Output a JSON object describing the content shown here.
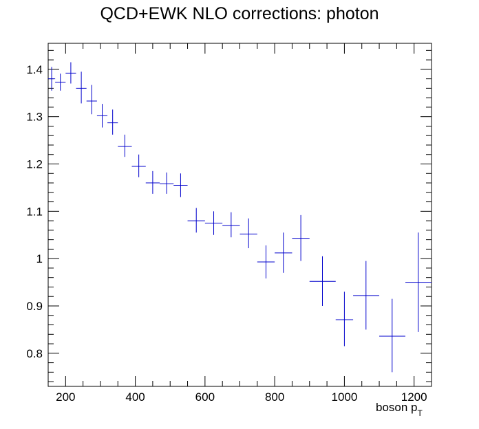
{
  "chart_data": {
    "type": "scatter",
    "title": "QCD+EWK NLO corrections: photon",
    "xlabel": "boson p",
    "xlabel_subscript": "T",
    "ylabel": "",
    "xlim": [
      150,
      1250
    ],
    "ylim": [
      0.73,
      1.455
    ],
    "xticks": [
      200,
      400,
      600,
      800,
      1000,
      1200
    ],
    "yticks": [
      0.8,
      0.9,
      1.0,
      1.1,
      1.2,
      1.3,
      1.4
    ],
    "ytick_labels": [
      "0.8",
      "0.9",
      "1",
      "1.1",
      "1.2",
      "1.3",
      "1.4"
    ],
    "grid": false,
    "series": [
      {
        "color": "#0000cc",
        "points": [
          {
            "x": 160,
            "xlo": 150,
            "xhi": 170,
            "y": 1.38,
            "ylo": 1.355,
            "yhi": 1.405
          },
          {
            "x": 185,
            "xlo": 170,
            "xhi": 200,
            "y": 1.373,
            "ylo": 1.355,
            "yhi": 1.391
          },
          {
            "x": 215,
            "xlo": 200,
            "xhi": 230,
            "y": 1.392,
            "ylo": 1.37,
            "yhi": 1.415
          },
          {
            "x": 245,
            "xlo": 230,
            "xhi": 260,
            "y": 1.36,
            "ylo": 1.328,
            "yhi": 1.395
          },
          {
            "x": 275,
            "xlo": 260,
            "xhi": 290,
            "y": 1.333,
            "ylo": 1.305,
            "yhi": 1.367
          },
          {
            "x": 305,
            "xlo": 290,
            "xhi": 320,
            "y": 1.302,
            "ylo": 1.277,
            "yhi": 1.327
          },
          {
            "x": 335,
            "xlo": 320,
            "xhi": 350,
            "y": 1.287,
            "ylo": 1.262,
            "yhi": 1.315
          },
          {
            "x": 370,
            "xlo": 350,
            "xhi": 390,
            "y": 1.237,
            "ylo": 1.215,
            "yhi": 1.262
          },
          {
            "x": 410,
            "xlo": 390,
            "xhi": 430,
            "y": 1.195,
            "ylo": 1.172,
            "yhi": 1.22
          },
          {
            "x": 450,
            "xlo": 430,
            "xhi": 470,
            "y": 1.16,
            "ylo": 1.137,
            "yhi": 1.185
          },
          {
            "x": 490,
            "xlo": 470,
            "xhi": 510,
            "y": 1.158,
            "ylo": 1.137,
            "yhi": 1.182
          },
          {
            "x": 530,
            "xlo": 510,
            "xhi": 550,
            "y": 1.155,
            "ylo": 1.13,
            "yhi": 1.18
          },
          {
            "x": 575,
            "xlo": 550,
            "xhi": 600,
            "y": 1.08,
            "ylo": 1.055,
            "yhi": 1.107
          },
          {
            "x": 625,
            "xlo": 600,
            "xhi": 650,
            "y": 1.075,
            "ylo": 1.05,
            "yhi": 1.1
          },
          {
            "x": 675,
            "xlo": 650,
            "xhi": 700,
            "y": 1.07,
            "ylo": 1.045,
            "yhi": 1.098
          },
          {
            "x": 725,
            "xlo": 700,
            "xhi": 750,
            "y": 1.052,
            "ylo": 1.022,
            "yhi": 1.085
          },
          {
            "x": 775,
            "xlo": 750,
            "xhi": 800,
            "y": 0.993,
            "ylo": 0.958,
            "yhi": 1.028
          },
          {
            "x": 825,
            "xlo": 800,
            "xhi": 850,
            "y": 1.012,
            "ylo": 0.97,
            "yhi": 1.055
          },
          {
            "x": 875,
            "xlo": 850,
            "xhi": 900,
            "y": 1.043,
            "ylo": 0.995,
            "yhi": 1.092
          },
          {
            "x": 937,
            "xlo": 900,
            "xhi": 975,
            "y": 0.952,
            "ylo": 0.9,
            "yhi": 1.005
          },
          {
            "x": 1000,
            "xlo": 975,
            "xhi": 1025,
            "y": 0.871,
            "ylo": 0.815,
            "yhi": 0.93
          },
          {
            "x": 1062,
            "xlo": 1025,
            "xhi": 1100,
            "y": 0.922,
            "ylo": 0.85,
            "yhi": 0.995
          },
          {
            "x": 1137,
            "xlo": 1100,
            "xhi": 1175,
            "y": 0.836,
            "ylo": 0.76,
            "yhi": 0.915
          },
          {
            "x": 1212,
            "xlo": 1175,
            "xhi": 1250,
            "y": 0.95,
            "ylo": 0.845,
            "yhi": 1.055
          }
        ]
      }
    ]
  }
}
